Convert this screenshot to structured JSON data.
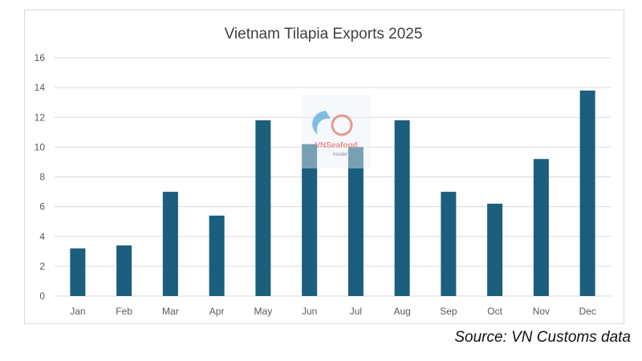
{
  "chart_data": {
    "type": "bar",
    "title": "Vietnam Tilapia Exports 2025",
    "categories": [
      "Jan",
      "Feb",
      "Mar",
      "Apr",
      "May",
      "Jun",
      "Jul",
      "Aug",
      "Sep",
      "Oct",
      "Nov",
      "Dec"
    ],
    "values": [
      3.2,
      3.4,
      7.0,
      5.4,
      11.8,
      10.2,
      10.0,
      11.8,
      7.0,
      6.2,
      9.2,
      13.8
    ],
    "ylim": [
      0,
      16
    ],
    "yticks": [
      "0",
      "2",
      "4",
      "6",
      "8",
      "10",
      "12",
      "14",
      "16"
    ],
    "grid": true,
    "legend": "none",
    "bar_color": "#1b5e7e",
    "grid_color": "#d9d9d9",
    "text_color": "#595959"
  },
  "watermark": {
    "brand": "VNSeafood",
    "sub": "Insider"
  },
  "source": "Source: VN Customs data"
}
